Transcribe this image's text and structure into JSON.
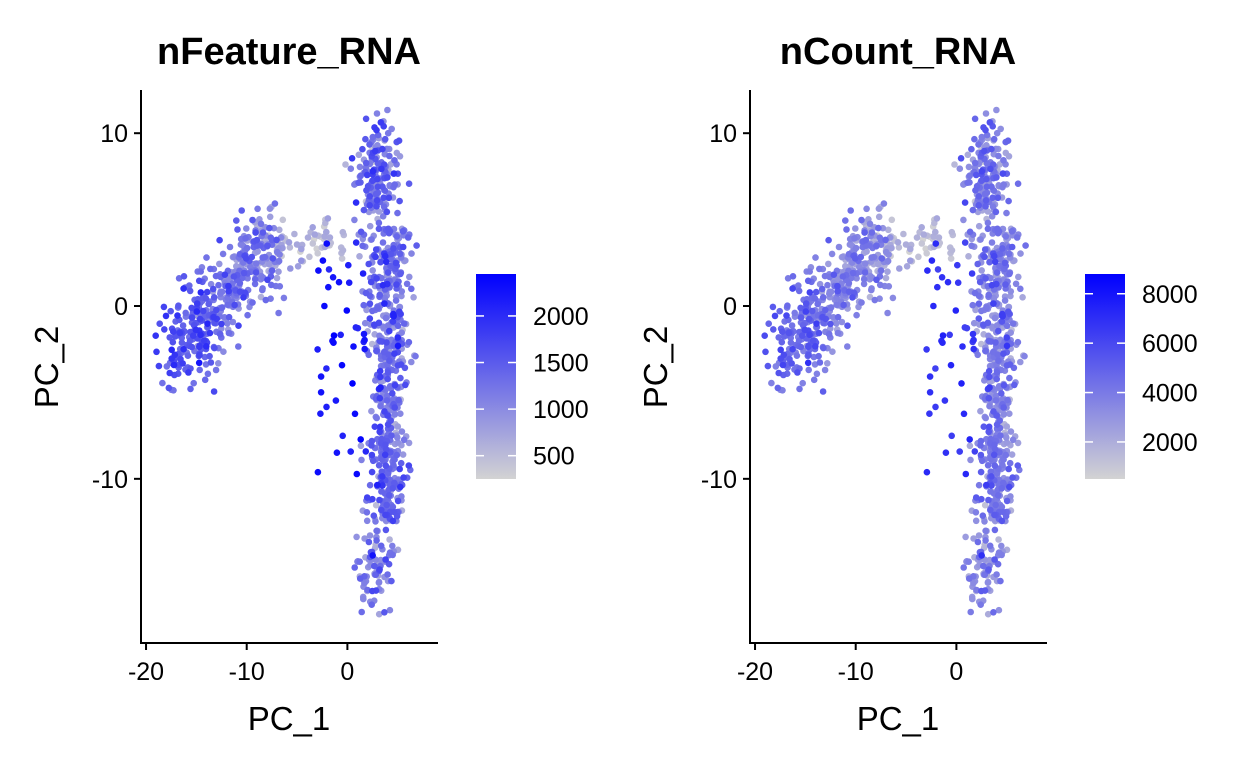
{
  "chart_data": [
    {
      "type": "scatter",
      "title": "nFeature_RNA",
      "xlabel": "PC_1",
      "ylabel": "PC_2",
      "xlim": [
        -20.5,
        9
      ],
      "ylim": [
        -19.5,
        12.5
      ],
      "xticks": [
        -20,
        -10,
        0
      ],
      "xtick_labels": [
        "-20",
        "-10",
        "0"
      ],
      "yticks": [
        10,
        0,
        -10
      ],
      "ytick_labels": [
        "10",
        "0",
        "-10"
      ],
      "grid": false,
      "color_scale": {
        "low_color": "#d3d3d3",
        "high_color": "#0000ff",
        "min": 250,
        "max": 2450,
        "breaks": [
          2000,
          1500,
          1000,
          500
        ],
        "break_labels": [
          "2000",
          "1500",
          "1000",
          "500"
        ]
      },
      "legend_position": "right",
      "seed": 7
    },
    {
      "type": "scatter",
      "title": "nCount_RNA",
      "xlabel": "PC_1",
      "ylabel": "PC_2",
      "xlim": [
        -20.5,
        9
      ],
      "ylim": [
        -19.5,
        12.5
      ],
      "xticks": [
        -20,
        -10,
        0
      ],
      "xtick_labels": [
        "-20",
        "-10",
        "0"
      ],
      "yticks": [
        10,
        0,
        -10
      ],
      "ytick_labels": [
        "10",
        "0",
        "-10"
      ],
      "grid": false,
      "color_scale": {
        "low_color": "#d3d3d3",
        "high_color": "#0000ff",
        "min": 500,
        "max": 8800,
        "breaks": [
          8000,
          6000,
          4000,
          2000
        ],
        "break_labels": [
          "8000",
          "6000",
          "4000",
          "2000"
        ]
      },
      "legend_position": "right",
      "seed": 7
    }
  ]
}
